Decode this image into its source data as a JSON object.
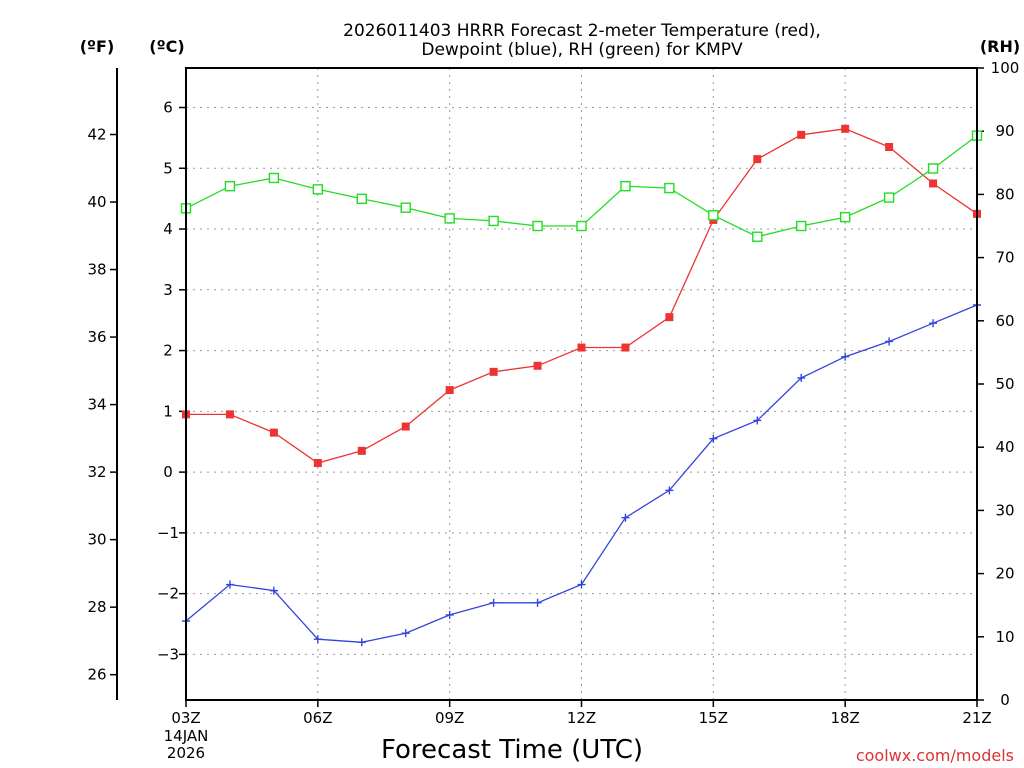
{
  "chart_data": {
    "type": "line",
    "title_line1": "2026011403 HRRR Forecast 2-meter Temperature (red),",
    "title_line2": "Dewpoint (blue), RH (green) for KMPV",
    "xlabel": "Forecast Time (UTC)",
    "credit": "coolwx.com/models",
    "left_outer_unit": "(ºF)",
    "left_inner_unit": "(ºC)",
    "right_unit": "(RH)",
    "date_label_line1": "14JAN",
    "date_label_line2": "2026",
    "x_hours": [
      3,
      4,
      5,
      6,
      7,
      8,
      9,
      10,
      11,
      12,
      13,
      14,
      15,
      16,
      17,
      18,
      19,
      20,
      21
    ],
    "x_ticks": [
      {
        "hour": 3,
        "label": "03Z"
      },
      {
        "hour": 6,
        "label": "06Z"
      },
      {
        "hour": 9,
        "label": "09Z"
      },
      {
        "hour": 12,
        "label": "12Z"
      },
      {
        "hour": 15,
        "label": "15Z"
      },
      {
        "hour": 18,
        "label": "18Z"
      },
      {
        "hour": 21,
        "label": "21Z"
      }
    ],
    "ylim_c": [
      -3.75,
      6.65
    ],
    "ylim_rh": [
      0,
      100
    ],
    "c_ticks": [
      {
        "v": -3,
        "label": "−3"
      },
      {
        "v": -2,
        "label": "−2"
      },
      {
        "v": -1,
        "label": "−1"
      },
      {
        "v": 0,
        "label": "0"
      },
      {
        "v": 1,
        "label": "1"
      },
      {
        "v": 2,
        "label": "2"
      },
      {
        "v": 3,
        "label": "3"
      },
      {
        "v": 4,
        "label": "4"
      },
      {
        "v": 5,
        "label": "5"
      },
      {
        "v": 6,
        "label": "6"
      }
    ],
    "f_ticks": [
      {
        "v": 26,
        "label": "26"
      },
      {
        "v": 28,
        "label": "28"
      },
      {
        "v": 30,
        "label": "30"
      },
      {
        "v": 32,
        "label": "32"
      },
      {
        "v": 34,
        "label": "34"
      },
      {
        "v": 36,
        "label": "36"
      },
      {
        "v": 38,
        "label": "38"
      },
      {
        "v": 40,
        "label": "40"
      },
      {
        "v": 42,
        "label": "42"
      }
    ],
    "rh_ticks": [
      {
        "v": 0,
        "label": "0"
      },
      {
        "v": 10,
        "label": "10"
      },
      {
        "v": 20,
        "label": "20"
      },
      {
        "v": 30,
        "label": "30"
      },
      {
        "v": 40,
        "label": "40"
      },
      {
        "v": 50,
        "label": "50"
      },
      {
        "v": 60,
        "label": "60"
      },
      {
        "v": 70,
        "label": "70"
      },
      {
        "v": 80,
        "label": "80"
      },
      {
        "v": 90,
        "label": "90"
      },
      {
        "v": 100,
        "label": "100"
      }
    ],
    "series": [
      {
        "name": "Temperature",
        "unit": "C",
        "color": "#ee3333",
        "marker": "filled-square",
        "values": [
          0.95,
          0.95,
          0.65,
          0.15,
          0.35,
          0.75,
          1.35,
          1.65,
          1.75,
          2.05,
          2.05,
          2.55,
          4.15,
          5.15,
          5.55,
          5.65,
          5.35,
          4.75,
          4.25
        ]
      },
      {
        "name": "Dewpoint",
        "unit": "C",
        "color": "#3344dd",
        "marker": "plus",
        "values": [
          -2.45,
          -1.85,
          -1.95,
          -2.75,
          -2.8,
          -2.65,
          -2.35,
          -2.15,
          -2.15,
          -1.85,
          -0.75,
          -0.3,
          0.55,
          0.85,
          1.55,
          1.9,
          2.15,
          2.45,
          2.75
        ]
      },
      {
        "name": "RH",
        "unit": "%",
        "color": "#22dd22",
        "marker": "open-square",
        "values": [
          77.8,
          81.3,
          82.6,
          80.8,
          79.3,
          77.9,
          76.2,
          75.8,
          75.0,
          75.0,
          81.3,
          81.0,
          76.7,
          73.3,
          75.0,
          76.4,
          79.5,
          84.1,
          89.3
        ]
      }
    ]
  }
}
